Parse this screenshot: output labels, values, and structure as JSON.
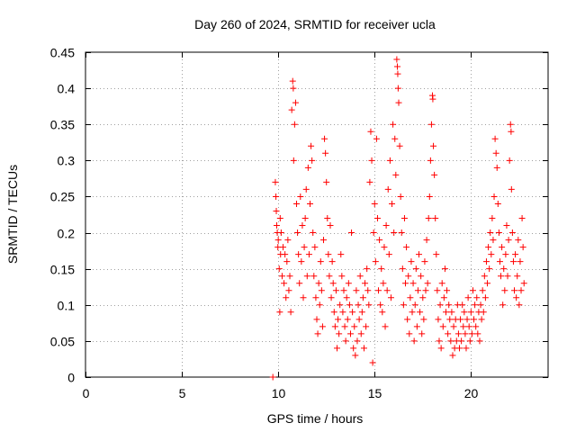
{
  "chart_data": {
    "type": "scatter",
    "title": "Day 260 of 2024, SRMTID for receiver ucla",
    "xlabel": "GPS time / hours",
    "ylabel": "SRMTID / TECUs",
    "xlim": [
      0,
      24
    ],
    "ylim": [
      0,
      0.45
    ],
    "xticks": [
      "0",
      "5",
      "10",
      "15",
      "20"
    ],
    "xtick_values": [
      0,
      5,
      10,
      15,
      20
    ],
    "yticks": [
      "0",
      "0.05",
      "0.1",
      "0.15",
      "0.2",
      "0.25",
      "0.3",
      "0.35",
      "0.4",
      "0.45"
    ],
    "ytick_values": [
      0,
      0.05,
      0.1,
      0.15,
      0.2,
      0.25,
      0.3,
      0.35,
      0.4,
      0.45
    ],
    "grid": true,
    "marker": "+",
    "color": "#ff0000",
    "series": [
      {
        "name": "SRMTID",
        "points": [
          [
            9.72,
            0.0
          ],
          [
            9.85,
            0.27
          ],
          [
            9.88,
            0.25
          ],
          [
            9.9,
            0.23
          ],
          [
            9.92,
            0.21
          ],
          [
            9.95,
            0.2
          ],
          [
            9.98,
            0.18
          ],
          [
            10.0,
            0.19
          ],
          [
            10.05,
            0.15
          ],
          [
            10.08,
            0.09
          ],
          [
            10.1,
            0.22
          ],
          [
            10.12,
            0.17
          ],
          [
            10.15,
            0.2
          ],
          [
            10.2,
            0.14
          ],
          [
            10.25,
            0.18
          ],
          [
            10.3,
            0.13
          ],
          [
            10.35,
            0.17
          ],
          [
            10.4,
            0.11
          ],
          [
            10.45,
            0.16
          ],
          [
            10.5,
            0.19
          ],
          [
            10.55,
            0.12
          ],
          [
            10.6,
            0.14
          ],
          [
            10.65,
            0.09
          ],
          [
            10.7,
            0.37
          ],
          [
            10.75,
            0.41
          ],
          [
            10.78,
            0.4
          ],
          [
            10.8,
            0.3
          ],
          [
            10.85,
            0.35
          ],
          [
            10.9,
            0.38
          ],
          [
            10.95,
            0.24
          ],
          [
            11.0,
            0.2
          ],
          [
            11.05,
            0.17
          ],
          [
            11.1,
            0.13
          ],
          [
            11.15,
            0.25
          ],
          [
            11.2,
            0.16
          ],
          [
            11.25,
            0.21
          ],
          [
            11.3,
            0.11
          ],
          [
            11.35,
            0.18
          ],
          [
            11.4,
            0.22
          ],
          [
            11.45,
            0.26
          ],
          [
            11.5,
            0.14
          ],
          [
            11.55,
            0.29
          ],
          [
            11.6,
            0.17
          ],
          [
            11.65,
            0.24
          ],
          [
            11.7,
            0.32
          ],
          [
            11.75,
            0.3
          ],
          [
            11.8,
            0.2
          ],
          [
            11.85,
            0.14
          ],
          [
            11.9,
            0.18
          ],
          [
            11.95,
            0.11
          ],
          [
            12.0,
            0.08
          ],
          [
            12.05,
            0.06
          ],
          [
            12.1,
            0.13
          ],
          [
            12.15,
            0.1
          ],
          [
            12.2,
            0.16
          ],
          [
            12.25,
            0.12
          ],
          [
            12.3,
            0.07
          ],
          [
            12.35,
            0.19
          ],
          [
            12.4,
            0.33
          ],
          [
            12.45,
            0.31
          ],
          [
            12.5,
            0.27
          ],
          [
            12.55,
            0.22
          ],
          [
            12.6,
            0.17
          ],
          [
            12.65,
            0.14
          ],
          [
            12.7,
            0.21
          ],
          [
            12.75,
            0.11
          ],
          [
            12.8,
            0.16
          ],
          [
            12.85,
            0.13
          ],
          [
            12.9,
            0.09
          ],
          [
            12.95,
            0.07
          ],
          [
            13.0,
            0.12
          ],
          [
            13.05,
            0.04
          ],
          [
            13.1,
            0.08
          ],
          [
            13.15,
            0.06
          ],
          [
            13.2,
            0.1
          ],
          [
            13.25,
            0.17
          ],
          [
            13.3,
            0.14
          ],
          [
            13.35,
            0.09
          ],
          [
            13.4,
            0.12
          ],
          [
            13.45,
            0.07
          ],
          [
            13.5,
            0.05
          ],
          [
            13.55,
            0.11
          ],
          [
            13.6,
            0.08
          ],
          [
            13.65,
            0.13
          ],
          [
            13.7,
            0.1
          ],
          [
            13.75,
            0.06
          ],
          [
            13.8,
            0.2
          ],
          [
            13.85,
            0.09
          ],
          [
            13.9,
            0.04
          ],
          [
            13.95,
            0.07
          ],
          [
            14.0,
            0.03
          ],
          [
            14.05,
            0.12
          ],
          [
            14.1,
            0.05
          ],
          [
            14.15,
            0.1
          ],
          [
            14.2,
            0.08
          ],
          [
            14.25,
            0.14
          ],
          [
            14.3,
            0.06
          ],
          [
            14.35,
            0.09
          ],
          [
            14.4,
            0.11
          ],
          [
            14.45,
            0.04
          ],
          [
            14.5,
            0.13
          ],
          [
            14.55,
            0.07
          ],
          [
            14.6,
            0.15
          ],
          [
            14.65,
            0.12
          ],
          [
            14.7,
            0.1
          ],
          [
            14.75,
            0.27
          ],
          [
            14.8,
            0.34
          ],
          [
            14.85,
            0.3
          ],
          [
            14.9,
            0.02
          ],
          [
            14.95,
            0.2
          ],
          [
            15.0,
            0.24
          ],
          [
            15.05,
            0.16
          ],
          [
            15.1,
            0.33
          ],
          [
            15.15,
            0.22
          ],
          [
            15.2,
            0.12
          ],
          [
            15.25,
            0.19
          ],
          [
            15.3,
            0.1
          ],
          [
            15.35,
            0.15
          ],
          [
            15.4,
            0.09
          ],
          [
            15.45,
            0.13
          ],
          [
            15.5,
            0.18
          ],
          [
            15.55,
            0.07
          ],
          [
            15.6,
            0.21
          ],
          [
            15.65,
            0.12
          ],
          [
            15.7,
            0.26
          ],
          [
            15.75,
            0.17
          ],
          [
            15.8,
            0.3
          ],
          [
            15.85,
            0.11
          ],
          [
            15.9,
            0.24
          ],
          [
            15.95,
            0.35
          ],
          [
            16.0,
            0.2
          ],
          [
            16.05,
            0.33
          ],
          [
            16.1,
            0.28
          ],
          [
            16.15,
            0.44
          ],
          [
            16.18,
            0.43
          ],
          [
            16.2,
            0.42
          ],
          [
            16.22,
            0.4
          ],
          [
            16.25,
            0.38
          ],
          [
            16.3,
            0.32
          ],
          [
            16.35,
            0.25
          ],
          [
            16.4,
            0.2
          ],
          [
            16.45,
            0.15
          ],
          [
            16.5,
            0.1
          ],
          [
            16.55,
            0.22
          ],
          [
            16.6,
            0.13
          ],
          [
            16.65,
            0.18
          ],
          [
            16.7,
            0.08
          ],
          [
            16.75,
            0.14
          ],
          [
            16.8,
            0.06
          ],
          [
            16.85,
            0.11
          ],
          [
            16.9,
            0.16
          ],
          [
            16.95,
            0.09
          ],
          [
            17.0,
            0.13
          ],
          [
            17.05,
            0.05
          ],
          [
            17.1,
            0.1
          ],
          [
            17.15,
            0.15
          ],
          [
            17.2,
            0.07
          ],
          [
            17.25,
            0.12
          ],
          [
            17.3,
            0.17
          ],
          [
            17.35,
            0.09
          ],
          [
            17.4,
            0.14
          ],
          [
            17.45,
            0.06
          ],
          [
            17.5,
            0.11
          ],
          [
            17.55,
            0.08
          ],
          [
            17.6,
            0.16
          ],
          [
            17.65,
            0.12
          ],
          [
            17.7,
            0.19
          ],
          [
            17.75,
            0.13
          ],
          [
            17.8,
            0.22
          ],
          [
            17.85,
            0.25
          ],
          [
            17.9,
            0.3
          ],
          [
            17.95,
            0.35
          ],
          [
            18.0,
            0.39
          ],
          [
            18.02,
            0.385
          ],
          [
            18.05,
            0.32
          ],
          [
            18.1,
            0.28
          ],
          [
            18.15,
            0.22
          ],
          [
            18.2,
            0.17
          ],
          [
            18.25,
            0.12
          ],
          [
            18.3,
            0.08
          ],
          [
            18.35,
            0.05
          ],
          [
            18.4,
            0.1
          ],
          [
            18.45,
            0.04
          ],
          [
            18.5,
            0.13
          ],
          [
            18.55,
            0.07
          ],
          [
            18.6,
            0.11
          ],
          [
            18.65,
            0.15
          ],
          [
            18.7,
            0.09
          ],
          [
            18.75,
            0.12
          ],
          [
            18.8,
            0.06
          ],
          [
            18.85,
            0.1
          ],
          [
            18.9,
            0.08
          ],
          [
            18.95,
            0.05
          ],
          [
            19.0,
            0.09
          ],
          [
            19.05,
            0.03
          ],
          [
            19.1,
            0.07
          ],
          [
            19.15,
            0.04
          ],
          [
            19.2,
            0.08
          ],
          [
            19.25,
            0.05
          ],
          [
            19.3,
            0.1
          ],
          [
            19.35,
            0.06
          ],
          [
            19.4,
            0.04
          ],
          [
            19.45,
            0.08
          ],
          [
            19.5,
            0.05
          ],
          [
            19.55,
            0.1
          ],
          [
            19.6,
            0.07
          ],
          [
            19.65,
            0.09
          ],
          [
            19.7,
            0.06
          ],
          [
            19.75,
            0.04
          ],
          [
            19.8,
            0.08
          ],
          [
            19.85,
            0.11
          ],
          [
            19.9,
            0.07
          ],
          [
            19.95,
            0.05
          ],
          [
            20.0,
            0.09
          ],
          [
            20.05,
            0.06
          ],
          [
            20.1,
            0.12
          ],
          [
            20.15,
            0.08
          ],
          [
            20.2,
            0.1
          ],
          [
            20.25,
            0.07
          ],
          [
            20.3,
            0.11
          ],
          [
            20.35,
            0.06
          ],
          [
            20.4,
            0.09
          ],
          [
            20.45,
            0.05
          ],
          [
            20.5,
            0.1
          ],
          [
            20.55,
            0.08
          ],
          [
            20.6,
            0.12
          ],
          [
            20.65,
            0.09
          ],
          [
            20.7,
            0.14
          ],
          [
            20.75,
            0.11
          ],
          [
            20.8,
            0.16
          ],
          [
            20.85,
            0.13
          ],
          [
            20.9,
            0.18
          ],
          [
            20.95,
            0.15
          ],
          [
            21.0,
            0.2
          ],
          [
            21.05,
            0.17
          ],
          [
            21.1,
            0.22
          ],
          [
            21.15,
            0.19
          ],
          [
            21.2,
            0.25
          ],
          [
            21.25,
            0.33
          ],
          [
            21.3,
            0.31
          ],
          [
            21.35,
            0.29
          ],
          [
            21.4,
            0.24
          ],
          [
            21.45,
            0.2
          ],
          [
            21.5,
            0.16
          ],
          [
            21.55,
            0.14
          ],
          [
            21.6,
            0.18
          ],
          [
            21.65,
            0.1
          ],
          [
            21.7,
            0.15
          ],
          [
            21.75,
            0.12
          ],
          [
            21.8,
            0.17
          ],
          [
            21.85,
            0.21
          ],
          [
            21.9,
            0.14
          ],
          [
            21.95,
            0.19
          ],
          [
            22.0,
            0.3
          ],
          [
            22.05,
            0.35
          ],
          [
            22.08,
            0.34
          ],
          [
            22.1,
            0.26
          ],
          [
            22.15,
            0.2
          ],
          [
            22.2,
            0.16
          ],
          [
            22.25,
            0.12
          ],
          [
            22.3,
            0.17
          ],
          [
            22.35,
            0.11
          ],
          [
            22.4,
            0.14
          ],
          [
            22.45,
            0.19
          ],
          [
            22.5,
            0.1
          ],
          [
            22.55,
            0.16
          ],
          [
            22.6,
            0.12
          ],
          [
            22.65,
            0.22
          ],
          [
            22.7,
            0.18
          ],
          [
            22.75,
            0.13
          ]
        ]
      }
    ]
  }
}
